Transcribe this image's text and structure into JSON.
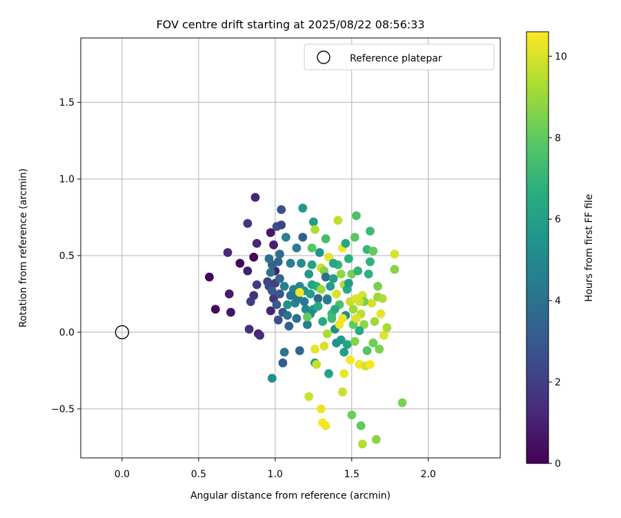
{
  "chart_data": {
    "type": "scatter",
    "title": "FOV centre drift starting at 2025/08/22 08:56:33",
    "xlabel": "Angular distance from reference (arcmin)",
    "ylabel": "Rotation from reference (arcmin)",
    "xlim": [
      -0.27,
      2.47
    ],
    "ylim": [
      -0.82,
      1.92
    ],
    "xticks": [
      0.0,
      0.5,
      1.0,
      1.5,
      2.0
    ],
    "xtick_labels": [
      "0.0",
      "0.5",
      "1.0",
      "1.5",
      "2.0"
    ],
    "yticks": [
      -0.5,
      0.0,
      0.5,
      1.0,
      1.5
    ],
    "ytick_labels": [
      "−0.5",
      "0.0",
      "0.5",
      "1.0",
      "1.5"
    ],
    "grid": true,
    "legend": {
      "position": "top-right",
      "entries": [
        "Reference platepar"
      ]
    },
    "reference_point": {
      "x": 0.0,
      "y": 0.0,
      "label": "Reference platepar"
    },
    "colorbar": {
      "label": "Hours from first FF file",
      "colormap": "viridis",
      "min": 0,
      "max": 10.6,
      "ticks": [
        0,
        2,
        4,
        6,
        8,
        10
      ],
      "tick_labels": [
        "0",
        "2",
        "4",
        "6",
        "8",
        "10"
      ]
    },
    "points": [
      {
        "x": 0.57,
        "y": 0.36,
        "t": 0.1
      },
      {
        "x": 0.61,
        "y": 0.15,
        "t": 0.3
      },
      {
        "x": 0.71,
        "y": 0.13,
        "t": 0.6
      },
      {
        "x": 0.7,
        "y": 0.25,
        "t": 0.8
      },
      {
        "x": 0.69,
        "y": 0.52,
        "t": 1.3
      },
      {
        "x": 0.77,
        "y": 0.45,
        "t": 0.2
      },
      {
        "x": 0.82,
        "y": 0.4,
        "t": 0.9
      },
      {
        "x": 0.86,
        "y": 0.49,
        "t": 0.1
      },
      {
        "x": 0.87,
        "y": 0.88,
        "t": 1.2
      },
      {
        "x": 0.82,
        "y": 0.71,
        "t": 1.7
      },
      {
        "x": 0.88,
        "y": 0.58,
        "t": 1.1
      },
      {
        "x": 0.84,
        "y": 0.2,
        "t": 2.0
      },
      {
        "x": 0.86,
        "y": 0.24,
        "t": 1.5
      },
      {
        "x": 0.88,
        "y": 0.31,
        "t": 1.9
      },
      {
        "x": 0.83,
        "y": 0.02,
        "t": 1.4
      },
      {
        "x": 0.89,
        "y": -0.01,
        "t": 1.0
      },
      {
        "x": 0.9,
        "y": -0.02,
        "t": 1.3
      },
      {
        "x": 0.95,
        "y": 0.33,
        "t": 2.2
      },
      {
        "x": 0.97,
        "y": 0.65,
        "t": 0.7
      },
      {
        "x": 0.99,
        "y": 0.57,
        "t": 1.0
      },
      {
        "x": 0.97,
        "y": 0.14,
        "t": 1.1
      },
      {
        "x": 0.99,
        "y": 0.22,
        "t": 1.6
      },
      {
        "x": 0.96,
        "y": 0.3,
        "t": 2.4
      },
      {
        "x": 1.0,
        "y": 0.4,
        "t": 1.0
      },
      {
        "x": 1.0,
        "y": 0.32,
        "t": 2.0
      },
      {
        "x": 1.01,
        "y": 0.69,
        "t": 2.5
      },
      {
        "x": 1.04,
        "y": 0.7,
        "t": 2.2
      },
      {
        "x": 1.04,
        "y": 0.8,
        "t": 2.6
      },
      {
        "x": 1.02,
        "y": 0.08,
        "t": 2.6
      },
      {
        "x": 1.03,
        "y": 0.25,
        "t": 2.8
      },
      {
        "x": 1.05,
        "y": 0.13,
        "t": 2.9
      },
      {
        "x": 1.02,
        "y": 0.46,
        "t": 3.6
      },
      {
        "x": 1.03,
        "y": 0.51,
        "t": 3.8
      },
      {
        "x": 1.05,
        "y": -0.2,
        "t": 3.1
      },
      {
        "x": 1.06,
        "y": -0.13,
        "t": 4.2
      },
      {
        "x": 0.98,
        "y": -0.3,
        "t": 5.2
      },
      {
        "x": 0.98,
        "y": 0.44,
        "t": 3.4
      },
      {
        "x": 0.97,
        "y": 0.39,
        "t": 4.0
      },
      {
        "x": 0.96,
        "y": 0.48,
        "t": 3.9
      },
      {
        "x": 0.98,
        "y": 0.27,
        "t": 3.0
      },
      {
        "x": 1.01,
        "y": 0.18,
        "t": 3.1
      },
      {
        "x": 1.03,
        "y": 0.35,
        "t": 3.7
      },
      {
        "x": 1.06,
        "y": 0.3,
        "t": 4.5
      },
      {
        "x": 1.07,
        "y": 0.62,
        "t": 4.7
      },
      {
        "x": 1.08,
        "y": 0.11,
        "t": 4.0
      },
      {
        "x": 1.09,
        "y": 0.04,
        "t": 3.3
      },
      {
        "x": 1.1,
        "y": 0.45,
        "t": 4.5
      },
      {
        "x": 1.12,
        "y": 0.25,
        "t": 4.9
      },
      {
        "x": 1.13,
        "y": 0.19,
        "t": 4.8
      },
      {
        "x": 1.14,
        "y": 0.55,
        "t": 4.5
      },
      {
        "x": 1.15,
        "y": 0.22,
        "t": 4.2
      },
      {
        "x": 1.16,
        "y": -0.12,
        "t": 3.6
      },
      {
        "x": 1.16,
        "y": 0.3,
        "t": 5.0
      },
      {
        "x": 1.17,
        "y": 0.45,
        "t": 5.2
      },
      {
        "x": 1.18,
        "y": 0.81,
        "t": 5.6
      },
      {
        "x": 1.18,
        "y": 0.62,
        "t": 3.3
      },
      {
        "x": 1.19,
        "y": 0.27,
        "t": 5.4
      },
      {
        "x": 1.2,
        "y": 0.15,
        "t": 5.0
      },
      {
        "x": 1.21,
        "y": 0.05,
        "t": 4.5
      },
      {
        "x": 1.22,
        "y": 0.38,
        "t": 5.7
      },
      {
        "x": 1.23,
        "y": 0.25,
        "t": 5.9
      },
      {
        "x": 1.24,
        "y": 0.44,
        "t": 6.1
      },
      {
        "x": 1.24,
        "y": 0.55,
        "t": 7.8
      },
      {
        "x": 1.25,
        "y": 0.15,
        "t": 5.8
      },
      {
        "x": 1.25,
        "y": 0.72,
        "t": 5.9
      },
      {
        "x": 1.26,
        "y": -0.2,
        "t": 5.6
      },
      {
        "x": 1.26,
        "y": 0.67,
        "t": 9.3
      },
      {
        "x": 1.27,
        "y": 0.3,
        "t": 6.8
      },
      {
        "x": 1.28,
        "y": 0.22,
        "t": 3.6
      },
      {
        "x": 1.29,
        "y": 0.52,
        "t": 5.5
      },
      {
        "x": 1.3,
        "y": 0.42,
        "t": 9.8
      },
      {
        "x": 1.3,
        "y": 0.28,
        "t": 9.0
      },
      {
        "x": 1.31,
        "y": 0.07,
        "t": 6.4
      },
      {
        "x": 1.32,
        "y": 0.4,
        "t": 8.6
      },
      {
        "x": 1.33,
        "y": 0.61,
        "t": 7.4
      },
      {
        "x": 1.33,
        "y": 0.36,
        "t": 3.9
      },
      {
        "x": 1.34,
        "y": 0.22,
        "t": 6.6
      },
      {
        "x": 1.35,
        "y": 0.49,
        "t": 10.2
      },
      {
        "x": 1.35,
        "y": -0.27,
        "t": 6.1
      },
      {
        "x": 1.36,
        "y": 0.3,
        "t": 5.8
      },
      {
        "x": 1.37,
        "y": 0.12,
        "t": 7.1
      },
      {
        "x": 1.38,
        "y": 0.35,
        "t": 6.0
      },
      {
        "x": 1.39,
        "y": 0.02,
        "t": 5.3
      },
      {
        "x": 1.4,
        "y": 0.25,
        "t": 10.0
      },
      {
        "x": 1.41,
        "y": 0.73,
        "t": 9.6
      },
      {
        "x": 1.41,
        "y": 0.44,
        "t": 6.9
      },
      {
        "x": 1.42,
        "y": 0.18,
        "t": 7.5
      },
      {
        "x": 1.43,
        "y": -0.05,
        "t": 5.7
      },
      {
        "x": 1.43,
        "y": 0.38,
        "t": 8.9
      },
      {
        "x": 1.44,
        "y": 0.55,
        "t": 10.4
      },
      {
        "x": 1.44,
        "y": -0.39,
        "t": 9.8
      },
      {
        "x": 1.45,
        "y": 0.31,
        "t": 9.4
      },
      {
        "x": 1.45,
        "y": -0.27,
        "t": 10.3
      },
      {
        "x": 1.46,
        "y": 0.58,
        "t": 6.3
      },
      {
        "x": 1.46,
        "y": 0.11,
        "t": 5.1
      },
      {
        "x": 1.47,
        "y": -0.08,
        "t": 6.2
      },
      {
        "x": 1.48,
        "y": 0.48,
        "t": 6.7
      },
      {
        "x": 1.49,
        "y": 0.2,
        "t": 9.7
      },
      {
        "x": 1.5,
        "y": 0.38,
        "t": 8.4
      },
      {
        "x": 1.5,
        "y": -0.54,
        "t": 8.2
      },
      {
        "x": 1.51,
        "y": 0.05,
        "t": 8.0
      },
      {
        "x": 1.52,
        "y": 0.62,
        "t": 7.9
      },
      {
        "x": 1.52,
        "y": -0.06,
        "t": 8.6
      },
      {
        "x": 1.53,
        "y": 0.76,
        "t": 7.6
      },
      {
        "x": 1.53,
        "y": 0.22,
        "t": 10.1
      },
      {
        "x": 1.54,
        "y": 0.4,
        "t": 6.9
      },
      {
        "x": 1.55,
        "y": -0.21,
        "t": 10.4
      },
      {
        "x": 1.56,
        "y": -0.61,
        "t": 8.0
      },
      {
        "x": 1.56,
        "y": 0.12,
        "t": 9.5
      },
      {
        "x": 1.57,
        "y": 0.24,
        "t": 10.0
      },
      {
        "x": 1.57,
        "y": -0.73,
        "t": 9.4
      },
      {
        "x": 1.58,
        "y": 0.05,
        "t": 8.8
      },
      {
        "x": 1.59,
        "y": -0.22,
        "t": 9.9
      },
      {
        "x": 1.6,
        "y": 0.54,
        "t": 7.0
      },
      {
        "x": 1.61,
        "y": 0.38,
        "t": 6.8
      },
      {
        "x": 1.62,
        "y": 0.66,
        "t": 7.2
      },
      {
        "x": 1.62,
        "y": -0.21,
        "t": 10.5
      },
      {
        "x": 1.63,
        "y": 0.19,
        "t": 10.0
      },
      {
        "x": 1.64,
        "y": 0.53,
        "t": 8.1
      },
      {
        "x": 1.64,
        "y": -0.07,
        "t": 8.3
      },
      {
        "x": 1.65,
        "y": 0.07,
        "t": 9.1
      },
      {
        "x": 1.66,
        "y": -0.7,
        "t": 8.7
      },
      {
        "x": 1.67,
        "y": 0.23,
        "t": 9.0
      },
      {
        "x": 1.67,
        "y": 0.3,
        "t": 8.4
      },
      {
        "x": 1.68,
        "y": -0.11,
        "t": 8.5
      },
      {
        "x": 1.69,
        "y": 0.12,
        "t": 10.2
      },
      {
        "x": 1.7,
        "y": 0.22,
        "t": 9.3
      },
      {
        "x": 1.71,
        "y": -0.02,
        "t": 10.1
      },
      {
        "x": 1.73,
        "y": 0.03,
        "t": 9.2
      },
      {
        "x": 1.78,
        "y": 0.51,
        "t": 10.0
      },
      {
        "x": 1.78,
        "y": 0.41,
        "t": 8.7
      },
      {
        "x": 1.83,
        "y": -0.46,
        "t": 8.5
      },
      {
        "x": 1.12,
        "y": 0.28,
        "t": 4.6
      },
      {
        "x": 1.16,
        "y": 0.26,
        "t": 10.4
      },
      {
        "x": 1.19,
        "y": 0.2,
        "t": 4.3
      },
      {
        "x": 1.22,
        "y": -0.42,
        "t": 9.8
      },
      {
        "x": 1.23,
        "y": 0.12,
        "t": 5.0
      },
      {
        "x": 1.26,
        "y": -0.11,
        "t": 10.2
      },
      {
        "x": 1.27,
        "y": -0.21,
        "t": 9.7
      },
      {
        "x": 1.3,
        "y": -0.5,
        "t": 10.3
      },
      {
        "x": 1.31,
        "y": -0.59,
        "t": 10.5
      },
      {
        "x": 1.33,
        "y": -0.61,
        "t": 10.4
      },
      {
        "x": 1.32,
        "y": -0.09,
        "t": 10.0
      },
      {
        "x": 1.34,
        "y": -0.01,
        "t": 9.3
      },
      {
        "x": 1.38,
        "y": 0.45,
        "t": 6.3
      },
      {
        "x": 1.39,
        "y": 0.15,
        "t": 6.4
      },
      {
        "x": 1.4,
        "y": -0.07,
        "t": 5.5
      },
      {
        "x": 1.42,
        "y": 0.05,
        "t": 10.4
      },
      {
        "x": 1.47,
        "y": 0.28,
        "t": 6.6
      },
      {
        "x": 1.48,
        "y": 0.32,
        "t": 5.9
      },
      {
        "x": 1.49,
        "y": -0.18,
        "t": 10.5
      },
      {
        "x": 1.51,
        "y": 0.15,
        "t": 9.0
      },
      {
        "x": 1.55,
        "y": 0.01,
        "t": 6.5
      },
      {
        "x": 1.58,
        "y": 0.2,
        "t": 8.4
      },
      {
        "x": 1.6,
        "y": -0.12,
        "t": 7.7
      },
      {
        "x": 1.62,
        "y": 0.46,
        "t": 6.8
      },
      {
        "x": 1.24,
        "y": 0.31,
        "t": 6.2
      },
      {
        "x": 1.21,
        "y": 0.1,
        "t": 8.1
      },
      {
        "x": 1.34,
        "y": 0.21,
        "t": 4.4
      },
      {
        "x": 1.37,
        "y": 0.09,
        "t": 7.3
      },
      {
        "x": 1.44,
        "y": 0.09,
        "t": 10.3
      },
      {
        "x": 1.45,
        "y": -0.13,
        "t": 6.0
      },
      {
        "x": 1.53,
        "y": 0.09,
        "t": 10.1
      },
      {
        "x": 1.55,
        "y": 0.2,
        "t": 9.9
      },
      {
        "x": 1.28,
        "y": 0.17,
        "t": 6.5
      },
      {
        "x": 1.14,
        "y": 0.09,
        "t": 3.9
      },
      {
        "x": 1.1,
        "y": 0.24,
        "t": 4.1
      },
      {
        "x": 1.08,
        "y": 0.18,
        "t": 5.3
      }
    ]
  }
}
